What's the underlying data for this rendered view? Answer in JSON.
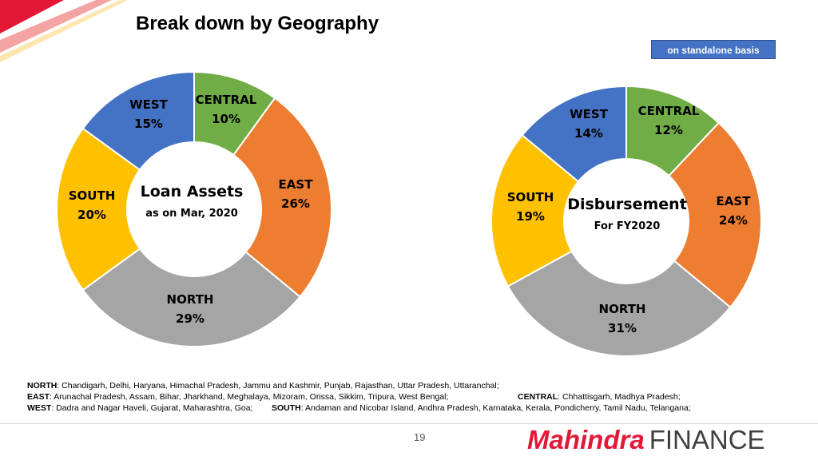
{
  "slide": {
    "title": "Break down by Geography",
    "basis_badge": "on standalone basis",
    "page_number": "19",
    "logo": {
      "brand": "Mahindra",
      "suffix": "FINANCE"
    }
  },
  "colors": {
    "accent": "#E31837",
    "CENTRAL": "#70AD47",
    "EAST": "#ED7D31",
    "NORTH": "#A5A5A5",
    "SOUTH": "#FFC000",
    "WEST": "#4472C4"
  },
  "chart_data": [
    {
      "type": "pie",
      "center_title": "Loan Assets",
      "center_subtitle": "as on Mar, 2020",
      "categories": [
        "CENTRAL",
        "EAST",
        "NORTH",
        "SOUTH",
        "WEST"
      ],
      "values": [
        10,
        26,
        29,
        20,
        15
      ],
      "labels": [
        "10%",
        "26%",
        "29%",
        "20%",
        "15%"
      ]
    },
    {
      "type": "pie",
      "center_title": "Disbursement",
      "center_subtitle": "For FY2020",
      "categories": [
        "CENTRAL",
        "EAST",
        "NORTH",
        "SOUTH",
        "WEST"
      ],
      "values": [
        12,
        24,
        31,
        19,
        14
      ],
      "labels": [
        "12%",
        "24%",
        "31%",
        "19%",
        "14%"
      ]
    }
  ],
  "footnotes": {
    "north": {
      "label": "NORTH",
      "text": ": Chandigarh, Delhi, Haryana, Himachal Pradesh, Jammu and Kashmir, Punjab, Rajasthan, Uttar Pradesh, Uttaranchal;"
    },
    "east": {
      "label": "EAST",
      "text": ": Arunachal Pradesh, Assam, Bihar, Jharkhand, Meghalaya, Mizoram, Orissa, Sikkim, Tripura, West Bengal;"
    },
    "central": {
      "label": "CENTRAL",
      "text": ": Chhattisgarh, Madhya Pradesh;"
    },
    "west": {
      "label": "WEST",
      "text": ": Dadra and Nagar Haveli, Gujarat, Maharashtra, Goa;"
    },
    "south": {
      "label": "SOUTH",
      "text": ": Andaman and Nicobar Island, Andhra Pradesh, Karnataka, Kerala, Pondicherry, Tamil Nadu, Telangana;"
    }
  }
}
